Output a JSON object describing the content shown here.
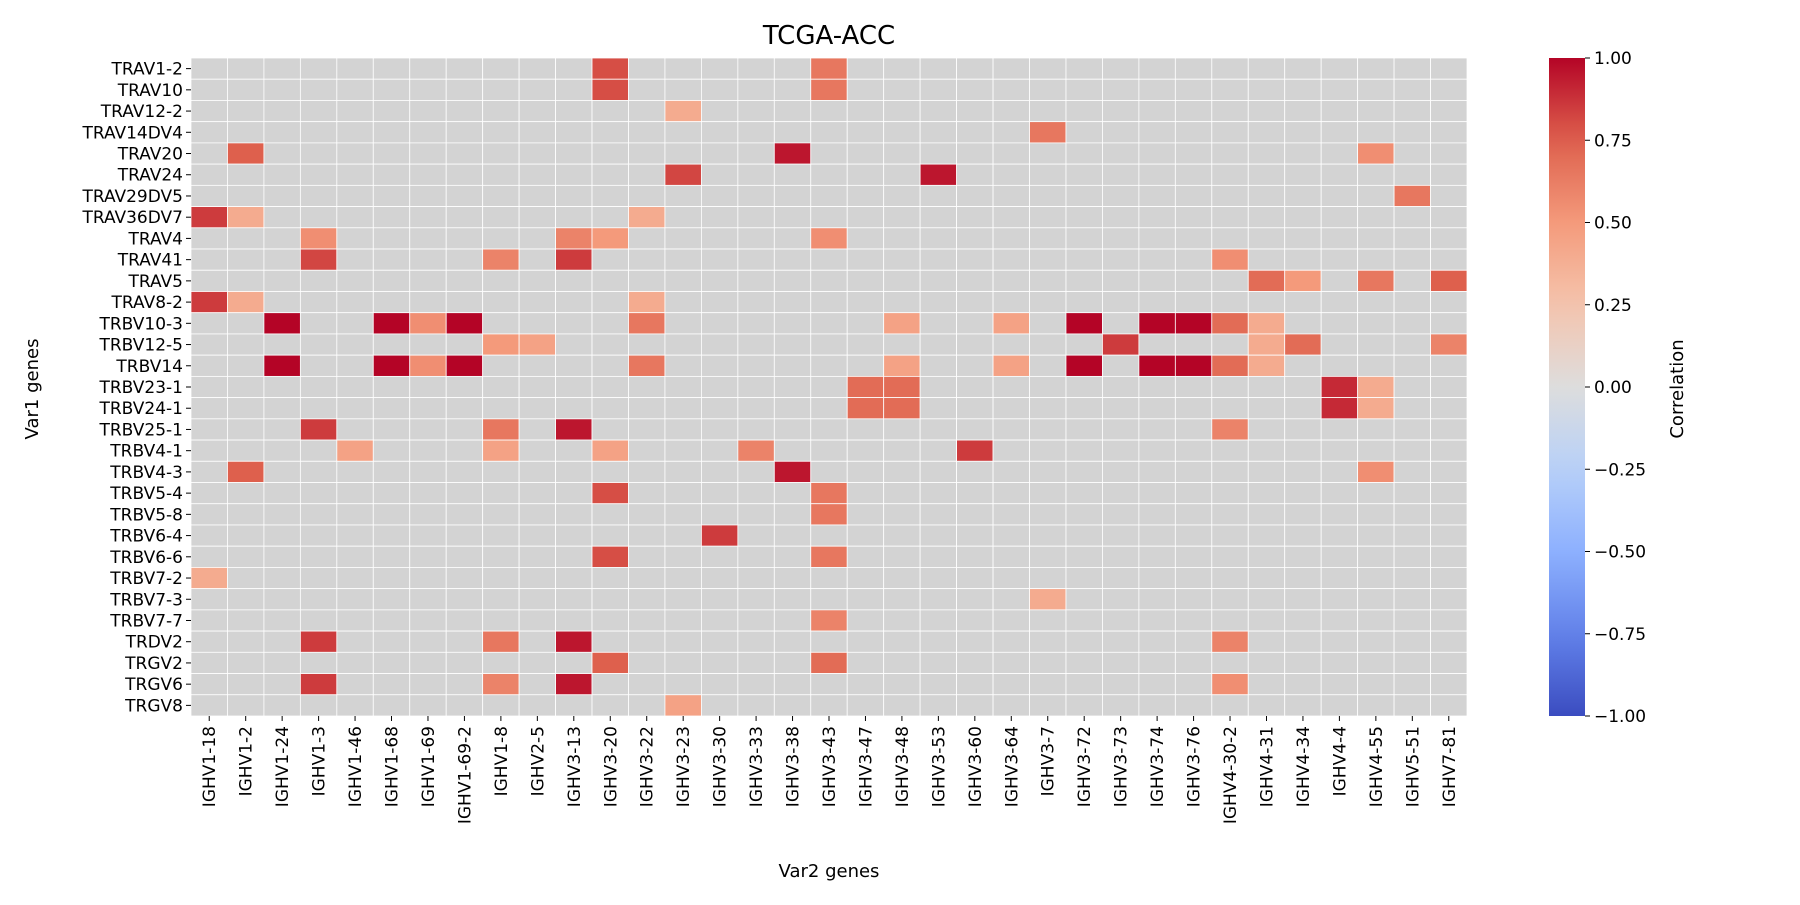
{
  "chart_data": {
    "type": "heatmap",
    "title": "TCGA-ACC",
    "xlabel": "Var2 genes",
    "ylabel": "Var1 genes",
    "colorbar_label": "Correlation",
    "colormap": "coolwarm",
    "vmin": -1.0,
    "vmax": 1.0,
    "colorbar_ticks": [
      1.0,
      0.75,
      0.5,
      0.25,
      0.0,
      -0.25,
      -0.5,
      -0.75,
      -1.0
    ],
    "colorbar_tick_labels": [
      "1.00",
      "0.75",
      "0.50",
      "0.25",
      "0.00",
      "−0.25",
      "−0.50",
      "−0.75",
      "−1.00"
    ],
    "missing_color": "#d3d3d3",
    "grid_color": "#ffffff",
    "x_categories": [
      "IGHV1-18",
      "IGHV1-2",
      "IGHV1-24",
      "IGHV1-3",
      "IGHV1-46",
      "IGHV1-68",
      "IGHV1-69",
      "IGHV1-69-2",
      "IGHV1-8",
      "IGHV2-5",
      "IGHV3-13",
      "IGHV3-20",
      "IGHV3-22",
      "IGHV3-23",
      "IGHV3-30",
      "IGHV3-33",
      "IGHV3-38",
      "IGHV3-43",
      "IGHV3-47",
      "IGHV3-48",
      "IGHV3-53",
      "IGHV3-60",
      "IGHV3-64",
      "IGHV3-7",
      "IGHV3-72",
      "IGHV3-73",
      "IGHV3-74",
      "IGHV3-76",
      "IGHV4-30-2",
      "IGHV4-31",
      "IGHV4-34",
      "IGHV4-4",
      "IGHV4-55",
      "IGHV5-51",
      "IGHV7-81"
    ],
    "y_categories": [
      "TRAV1-2",
      "TRAV10",
      "TRAV12-2",
      "TRAV14DV4",
      "TRAV20",
      "TRAV24",
      "TRAV29DV5",
      "TRAV36DV7",
      "TRAV4",
      "TRAV41",
      "TRAV5",
      "TRAV8-2",
      "TRBV10-3",
      "TRBV12-5",
      "TRBV14",
      "TRBV23-1",
      "TRBV24-1",
      "TRBV25-1",
      "TRBV4-1",
      "TRBV4-3",
      "TRBV5-4",
      "TRBV5-8",
      "TRBV6-4",
      "TRBV6-6",
      "TRBV7-2",
      "TRBV7-3",
      "TRBV7-7",
      "TRDV2",
      "TRGV2",
      "TRGV6",
      "TRGV8"
    ],
    "cells": [
      {
        "x": "IGHV3-20",
        "y": "TRAV1-2",
        "value": 0.8
      },
      {
        "x": "IGHV3-43",
        "y": "TRAV1-2",
        "value": 0.65
      },
      {
        "x": "IGHV3-20",
        "y": "TRAV10",
        "value": 0.8
      },
      {
        "x": "IGHV3-43",
        "y": "TRAV10",
        "value": 0.65
      },
      {
        "x": "IGHV3-23",
        "y": "TRAV12-2",
        "value": 0.4
      },
      {
        "x": "IGHV3-7",
        "y": "TRAV14DV4",
        "value": 0.65
      },
      {
        "x": "IGHV1-2",
        "y": "TRAV20",
        "value": 0.75
      },
      {
        "x": "IGHV3-38",
        "y": "TRAV20",
        "value": 0.95
      },
      {
        "x": "IGHV4-55",
        "y": "TRAV20",
        "value": 0.55
      },
      {
        "x": "IGHV3-23",
        "y": "TRAV24",
        "value": 0.82
      },
      {
        "x": "IGHV3-53",
        "y": "TRAV24",
        "value": 0.95
      },
      {
        "x": "IGHV5-51",
        "y": "TRAV29DV5",
        "value": 0.65
      },
      {
        "x": "IGHV1-18",
        "y": "TRAV36DV7",
        "value": 0.85
      },
      {
        "x": "IGHV1-2",
        "y": "TRAV36DV7",
        "value": 0.4
      },
      {
        "x": "IGHV3-22",
        "y": "TRAV36DV7",
        "value": 0.4
      },
      {
        "x": "IGHV1-3",
        "y": "TRAV4",
        "value": 0.55
      },
      {
        "x": "IGHV3-13",
        "y": "TRAV4",
        "value": 0.6
      },
      {
        "x": "IGHV3-20",
        "y": "TRAV4",
        "value": 0.5
      },
      {
        "x": "IGHV3-43",
        "y": "TRAV4",
        "value": 0.55
      },
      {
        "x": "IGHV1-3",
        "y": "TRAV41",
        "value": 0.82
      },
      {
        "x": "IGHV1-8",
        "y": "TRAV41",
        "value": 0.6
      },
      {
        "x": "IGHV3-13",
        "y": "TRAV41",
        "value": 0.85
      },
      {
        "x": "IGHV4-30-2",
        "y": "TRAV41",
        "value": 0.55
      },
      {
        "x": "IGHV4-31",
        "y": "TRAV5",
        "value": 0.7
      },
      {
        "x": "IGHV4-34",
        "y": "TRAV5",
        "value": 0.5
      },
      {
        "x": "IGHV4-55",
        "y": "TRAV5",
        "value": 0.65
      },
      {
        "x": "IGHV7-81",
        "y": "TRAV5",
        "value": 0.75
      },
      {
        "x": "IGHV1-18",
        "y": "TRAV8-2",
        "value": 0.85
      },
      {
        "x": "IGHV1-2",
        "y": "TRAV8-2",
        "value": 0.4
      },
      {
        "x": "IGHV3-22",
        "y": "TRAV8-2",
        "value": 0.4
      },
      {
        "x": "IGHV1-24",
        "y": "TRBV10-3",
        "value": 1.0
      },
      {
        "x": "IGHV1-68",
        "y": "TRBV10-3",
        "value": 1.0
      },
      {
        "x": "IGHV1-69",
        "y": "TRBV10-3",
        "value": 0.55
      },
      {
        "x": "IGHV1-69-2",
        "y": "TRBV10-3",
        "value": 1.0
      },
      {
        "x": "IGHV3-22",
        "y": "TRBV10-3",
        "value": 0.65
      },
      {
        "x": "IGHV3-48",
        "y": "TRBV10-3",
        "value": 0.45
      },
      {
        "x": "IGHV3-64",
        "y": "TRBV10-3",
        "value": 0.45
      },
      {
        "x": "IGHV3-72",
        "y": "TRBV10-3",
        "value": 1.0
      },
      {
        "x": "IGHV3-74",
        "y": "TRBV10-3",
        "value": 1.0
      },
      {
        "x": "IGHV3-76",
        "y": "TRBV10-3",
        "value": 1.0
      },
      {
        "x": "IGHV4-30-2",
        "y": "TRBV10-3",
        "value": 0.7
      },
      {
        "x": "IGHV4-31",
        "y": "TRBV10-3",
        "value": 0.4
      },
      {
        "x": "IGHV1-8",
        "y": "TRBV12-5",
        "value": 0.5
      },
      {
        "x": "IGHV2-5",
        "y": "TRBV12-5",
        "value": 0.45
      },
      {
        "x": "IGHV3-73",
        "y": "TRBV12-5",
        "value": 0.85
      },
      {
        "x": "IGHV4-31",
        "y": "TRBV12-5",
        "value": 0.4
      },
      {
        "x": "IGHV4-34",
        "y": "TRBV12-5",
        "value": 0.7
      },
      {
        "x": "IGHV7-81",
        "y": "TRBV12-5",
        "value": 0.6
      },
      {
        "x": "IGHV1-24",
        "y": "TRBV14",
        "value": 1.0
      },
      {
        "x": "IGHV1-68",
        "y": "TRBV14",
        "value": 1.0
      },
      {
        "x": "IGHV1-69",
        "y": "TRBV14",
        "value": 0.55
      },
      {
        "x": "IGHV1-69-2",
        "y": "TRBV14",
        "value": 1.0
      },
      {
        "x": "IGHV3-22",
        "y": "TRBV14",
        "value": 0.65
      },
      {
        "x": "IGHV3-48",
        "y": "TRBV14",
        "value": 0.45
      },
      {
        "x": "IGHV3-64",
        "y": "TRBV14",
        "value": 0.45
      },
      {
        "x": "IGHV3-72",
        "y": "TRBV14",
        "value": 1.0
      },
      {
        "x": "IGHV3-74",
        "y": "TRBV14",
        "value": 1.0
      },
      {
        "x": "IGHV3-76",
        "y": "TRBV14",
        "value": 1.0
      },
      {
        "x": "IGHV4-30-2",
        "y": "TRBV14",
        "value": 0.7
      },
      {
        "x": "IGHV4-31",
        "y": "TRBV14",
        "value": 0.4
      },
      {
        "x": "IGHV3-47",
        "y": "TRBV23-1",
        "value": 0.7
      },
      {
        "x": "IGHV3-48",
        "y": "TRBV23-1",
        "value": 0.7
      },
      {
        "x": "IGHV4-4",
        "y": "TRBV23-1",
        "value": 0.9
      },
      {
        "x": "IGHV4-55",
        "y": "TRBV23-1",
        "value": 0.4
      },
      {
        "x": "IGHV3-47",
        "y": "TRBV24-1",
        "value": 0.7
      },
      {
        "x": "IGHV3-48",
        "y": "TRBV24-1",
        "value": 0.7
      },
      {
        "x": "IGHV4-4",
        "y": "TRBV24-1",
        "value": 0.9
      },
      {
        "x": "IGHV4-55",
        "y": "TRBV24-1",
        "value": 0.4
      },
      {
        "x": "IGHV1-3",
        "y": "TRBV25-1",
        "value": 0.85
      },
      {
        "x": "IGHV1-8",
        "y": "TRBV25-1",
        "value": 0.65
      },
      {
        "x": "IGHV3-13",
        "y": "TRBV25-1",
        "value": 0.95
      },
      {
        "x": "IGHV4-30-2",
        "y": "TRBV25-1",
        "value": 0.6
      },
      {
        "x": "IGHV1-46",
        "y": "TRBV4-1",
        "value": 0.45
      },
      {
        "x": "IGHV1-8",
        "y": "TRBV4-1",
        "value": 0.45
      },
      {
        "x": "IGHV3-20",
        "y": "TRBV4-1",
        "value": 0.45
      },
      {
        "x": "IGHV3-33",
        "y": "TRBV4-1",
        "value": 0.6
      },
      {
        "x": "IGHV3-60",
        "y": "TRBV4-1",
        "value": 0.85
      },
      {
        "x": "IGHV1-2",
        "y": "TRBV4-3",
        "value": 0.75
      },
      {
        "x": "IGHV3-38",
        "y": "TRBV4-3",
        "value": 0.95
      },
      {
        "x": "IGHV4-55",
        "y": "TRBV4-3",
        "value": 0.55
      },
      {
        "x": "IGHV3-20",
        "y": "TRBV5-4",
        "value": 0.8
      },
      {
        "x": "IGHV3-43",
        "y": "TRBV5-4",
        "value": 0.65
      },
      {
        "x": "IGHV3-43",
        "y": "TRBV5-8",
        "value": 0.65
      },
      {
        "x": "IGHV3-30",
        "y": "TRBV6-4",
        "value": 0.85
      },
      {
        "x": "IGHV3-20",
        "y": "TRBV6-6",
        "value": 0.8
      },
      {
        "x": "IGHV3-43",
        "y": "TRBV6-6",
        "value": 0.65
      },
      {
        "x": "IGHV1-18",
        "y": "TRBV7-2",
        "value": 0.4
      },
      {
        "x": "IGHV3-7",
        "y": "TRBV7-3",
        "value": 0.4
      },
      {
        "x": "IGHV3-43",
        "y": "TRBV7-7",
        "value": 0.6
      },
      {
        "x": "IGHV1-3",
        "y": "TRDV2",
        "value": 0.85
      },
      {
        "x": "IGHV1-8",
        "y": "TRDV2",
        "value": 0.65
      },
      {
        "x": "IGHV3-13",
        "y": "TRDV2",
        "value": 0.95
      },
      {
        "x": "IGHV4-30-2",
        "y": "TRDV2",
        "value": 0.6
      },
      {
        "x": "IGHV3-20",
        "y": "TRGV2",
        "value": 0.75
      },
      {
        "x": "IGHV3-43",
        "y": "TRGV2",
        "value": 0.7
      },
      {
        "x": "IGHV1-3",
        "y": "TRGV6",
        "value": 0.85
      },
      {
        "x": "IGHV1-8",
        "y": "TRGV6",
        "value": 0.6
      },
      {
        "x": "IGHV3-13",
        "y": "TRGV6",
        "value": 0.95
      },
      {
        "x": "IGHV4-30-2",
        "y": "TRGV6",
        "value": 0.55
      },
      {
        "x": "IGHV3-23",
        "y": "TRGV8",
        "value": 0.45
      }
    ]
  }
}
